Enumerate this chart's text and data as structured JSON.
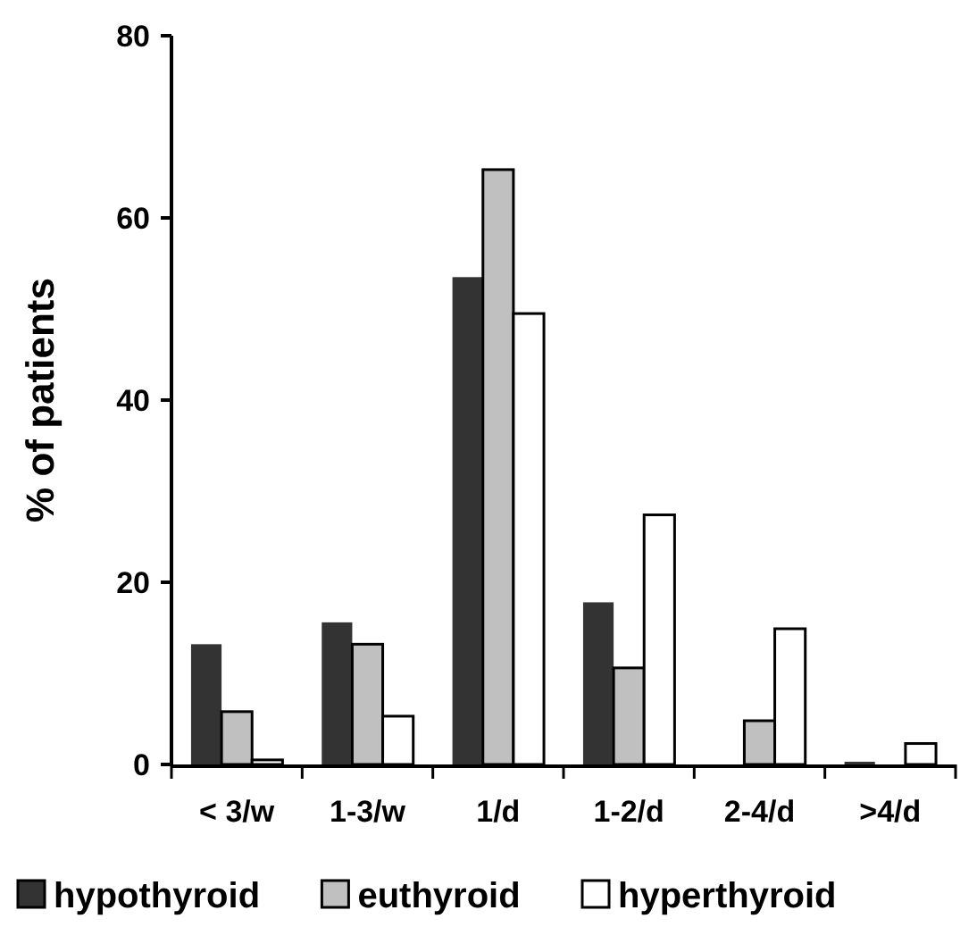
{
  "chart_data": {
    "type": "bar",
    "ylabel": "% of patients",
    "categories": [
      "< 3/w",
      "1-3/w",
      "1/d",
      "1-2/d",
      "2-4/d",
      ">4/d"
    ],
    "series": [
      {
        "name": "hypothyroid",
        "color": "#333333",
        "values": [
          13.2,
          15.6,
          53.5,
          17.8,
          0,
          0.3
        ]
      },
      {
        "name": "euthyroid",
        "color": "#c0c0c0",
        "values": [
          5.8,
          13.2,
          65.3,
          10.6,
          4.8,
          0
        ]
      },
      {
        "name": "hyperthyroid",
        "color": "#ffffff",
        "values": [
          0.5,
          5.3,
          49.5,
          27.4,
          14.9,
          2.3
        ]
      }
    ],
    "ylim": [
      0,
      80
    ],
    "yticks": [
      0,
      20,
      40,
      60,
      80
    ],
    "grid": false,
    "legend": "bottom"
  }
}
